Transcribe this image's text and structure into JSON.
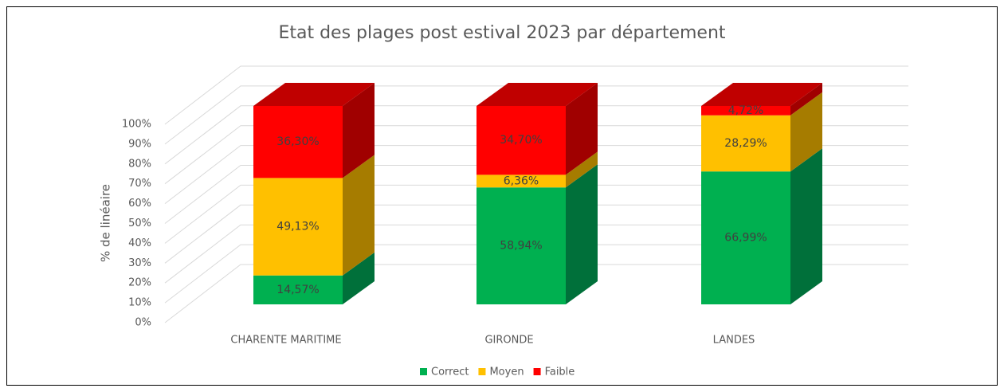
{
  "chart_data": {
    "type": "bar3d_stacked",
    "title": "Etat des plages post estival 2023 par département",
    "y_label": "% de linéaire",
    "categories": [
      "CHARENTE MARITIME",
      "GIRONDE",
      "LANDES"
    ],
    "series": [
      {
        "name": "Correct",
        "color": "#00b050",
        "side_color": "#00703a",
        "values": [
          14.57,
          58.94,
          66.99
        ],
        "value_labels": [
          "14,57%",
          "58,94%",
          "66,99%"
        ]
      },
      {
        "name": "Moyen",
        "color": "#ffc000",
        "side_color": "#a67c00",
        "values": [
          49.13,
          6.36,
          28.29
        ],
        "value_labels": [
          "49,13%",
          "6,36%",
          "28,29%"
        ]
      },
      {
        "name": "Faible",
        "color": "#ff0000",
        "side_color": "#a00000",
        "top_color": "#c00000",
        "values": [
          36.3,
          34.7,
          4.72
        ],
        "value_labels": [
          "36,30%",
          "34,70%",
          "4,72%"
        ]
      }
    ],
    "ylim": [
      0,
      100
    ],
    "yticks": [
      {
        "value": 0,
        "label": "0%"
      },
      {
        "value": 10,
        "label": "10%"
      },
      {
        "value": 20,
        "label": "20%"
      },
      {
        "value": 30,
        "label": "30%"
      },
      {
        "value": 40,
        "label": "40%"
      },
      {
        "value": 50,
        "label": "50%"
      },
      {
        "value": 60,
        "label": "60%"
      },
      {
        "value": 70,
        "label": "70%"
      },
      {
        "value": 80,
        "label": "80%"
      },
      {
        "value": 90,
        "label": "90%"
      },
      {
        "value": 100,
        "label": "100%"
      }
    ],
    "grid": true,
    "legend": "bottom"
  }
}
